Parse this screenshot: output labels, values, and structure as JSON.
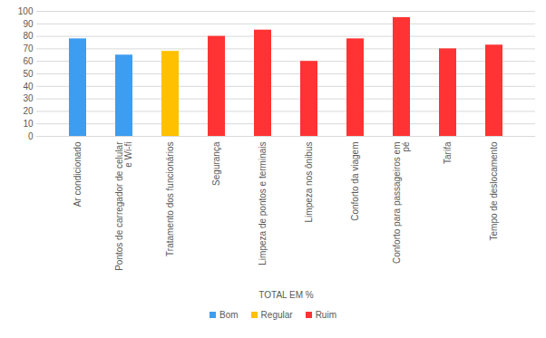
{
  "chart_data": {
    "type": "bar",
    "categories": [
      "Ar condicionado",
      "Pontos de carregador de celular e Wi-fi",
      "Tratamento dos funcionários",
      "Segurança",
      "Limpeza de pontos e terminais",
      "Limpeza nos ônibus",
      "Conforto da viagem",
      "Conforto para passageiros em pé",
      "Tarifa",
      "Tempo de deslocamento"
    ],
    "series": [
      {
        "name": "Bom",
        "color": "#3d9df0",
        "values": [
          78,
          65,
          null,
          null,
          null,
          null,
          null,
          null,
          null,
          null
        ]
      },
      {
        "name": "Regular",
        "color": "#ffc000",
        "values": [
          null,
          null,
          68,
          null,
          null,
          null,
          null,
          null,
          null,
          null
        ]
      },
      {
        "name": "Ruim",
        "color": "#ff3333",
        "values": [
          null,
          null,
          null,
          80,
          85,
          60,
          78,
          95,
          70,
          73
        ]
      }
    ],
    "xlabel": "TOTAL EM %",
    "ylim": [
      0,
      100
    ],
    "yticks": [
      0,
      10,
      20,
      30,
      40,
      50,
      60,
      70,
      80,
      90,
      100
    ],
    "grid": true,
    "legend": "bottom"
  }
}
